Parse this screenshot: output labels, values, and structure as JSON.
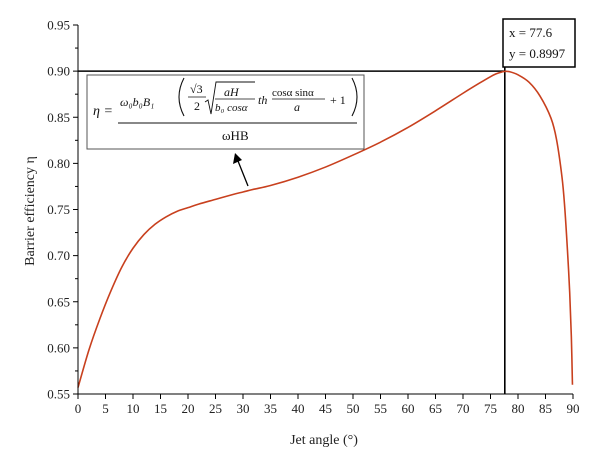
{
  "chart_data": {
    "type": "line",
    "title": "",
    "xlabel": "Jet angle (°)",
    "ylabel": "Barrier efficiency η",
    "xlim": [
      0,
      90
    ],
    "ylim": [
      0.55,
      0.95
    ],
    "x_ticks": [
      "0",
      "5",
      "10",
      "15",
      "20",
      "25",
      "30",
      "35",
      "40",
      "45",
      "50",
      "55",
      "60",
      "65",
      "70",
      "75",
      "80",
      "85",
      "90"
    ],
    "y_ticks": [
      "0.55",
      "0.60",
      "0.65",
      "0.70",
      "0.75",
      "0.80",
      "0.85",
      "0.90",
      "0.95"
    ],
    "grid": false,
    "colors": {
      "series": "#c8401e",
      "reference": "#000000"
    },
    "series": [
      {
        "x": [
          0,
          2,
          4,
          6,
          8,
          10,
          12,
          14,
          16,
          18,
          20,
          22,
          25,
          28,
          30,
          32,
          35,
          40,
          45,
          50,
          55,
          60,
          65,
          70,
          73,
          75,
          76,
          77,
          77.6,
          78.5,
          80,
          82,
          84,
          86,
          87,
          88,
          88.5,
          89,
          89.4,
          89.7,
          89.9
        ],
        "y": [
          0.557,
          0.598,
          0.632,
          0.662,
          0.688,
          0.708,
          0.723,
          0.734,
          0.742,
          0.748,
          0.752,
          0.756,
          0.761,
          0.766,
          0.769,
          0.772,
          0.776,
          0.785,
          0.796,
          0.809,
          0.823,
          0.839,
          0.857,
          0.876,
          0.887,
          0.894,
          0.897,
          0.899,
          0.8997,
          0.8993,
          0.896,
          0.888,
          0.873,
          0.849,
          0.826,
          0.785,
          0.752,
          0.705,
          0.66,
          0.612,
          0.56
        ]
      }
    ],
    "reference_lines": {
      "horizontal_y": 0.9,
      "vertical_x": 77.6
    },
    "annotations": {
      "peak": {
        "x_text": "x = 77.6",
        "y_text": "y = 0.8997"
      },
      "formula": {
        "lhs": "η =",
        "numerator_prefix": "ω₀b₀B₁",
        "frac1_num": "√3",
        "frac1_den": "2",
        "sqrt_num": "aH",
        "sqrt_den": "b₀ cosα",
        "th": "th",
        "frac2_num": "cosα sinα",
        "frac2_den": "a",
        "plus_one": "+ 1",
        "denominator": "ωHB"
      }
    }
  }
}
